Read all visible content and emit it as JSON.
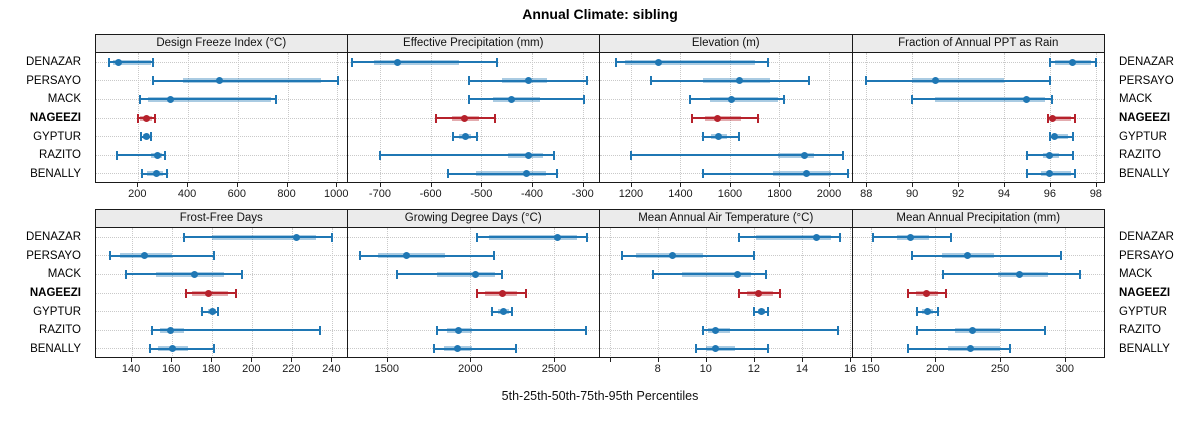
{
  "colors": {
    "blue": "#1f77b4",
    "blue_band": "rgba(31,119,180,0.38)",
    "red": "#b6212b",
    "red_band": "rgba(182,33,43,0.38)",
    "grid": "#c9c9c9",
    "strip_bg": "#ebebeb",
    "border": "#1a1a1a",
    "tick_text": "#1a1a1a"
  },
  "chart_data": {
    "type": "dotplot-interval",
    "title": "Annual Climate: sibling",
    "xlabel": "5th-25th-50th-75th-95th Percentiles",
    "percentile_levels": [
      5,
      25,
      50,
      75,
      95
    ],
    "sites": [
      "DENAZAR",
      "PERSAYO",
      "MACK",
      "NAGEEZI",
      "GYPTUR",
      "RAZITO",
      "BENALLY"
    ],
    "highlight_site": "NAGEEZI",
    "legend_position": "none",
    "grid": "dotted",
    "panels": [
      {
        "title": "Design Freeze Index (°C)",
        "xlim": [
          30,
          1045
        ],
        "ticks": [
          200,
          400,
          600,
          800,
          1000
        ],
        "tick_labels": [
          "200",
          "400",
          "600",
          "800",
          "1000"
        ],
        "values": {
          "DENAZAR": [
            82,
            98,
            122,
            250,
            259
          ],
          "PERSAYO": [
            259,
            380,
            528,
            935,
            1002
          ],
          "MACK": [
            205,
            238,
            330,
            735,
            753
          ],
          "NAGEEZI": [
            200,
            208,
            232,
            255,
            266
          ],
          "GYPTUR": [
            210,
            220,
            231,
            242,
            252
          ],
          "RAZITO": [
            114,
            250,
            278,
            296,
            306
          ],
          "BENALLY": [
            215,
            235,
            272,
            300,
            316
          ]
        }
      },
      {
        "title": "Effective Precipitation (mm)",
        "xlim": [
          -764,
          -266
        ],
        "ticks": [
          -700,
          -600,
          -500,
          -400,
          -300
        ],
        "tick_labels": [
          "-700",
          "-600",
          "-500",
          "-400",
          "-300"
        ],
        "values": {
          "DENAZAR": [
            -755,
            -712,
            -665,
            -545,
            -470
          ],
          "PERSAYO": [
            -525,
            -460,
            -408,
            -370,
            -291
          ],
          "MACK": [
            -525,
            -478,
            -440,
            -385,
            -297
          ],
          "NAGEEZI": [
            -590,
            -558,
            -533,
            -505,
            -473
          ],
          "GYPTUR": [
            -556,
            -545,
            -532,
            -520,
            -508
          ],
          "RAZITO": [
            -700,
            -448,
            -408,
            -378,
            -357
          ],
          "BENALLY": [
            -565,
            -510,
            -410,
            -373,
            -350
          ]
        }
      },
      {
        "title": "Elevation (m)",
        "xlim": [
          1075,
          2095
        ],
        "ticks": [
          1200,
          1400,
          1600,
          1800,
          2000
        ],
        "tick_labels": [
          "1200",
          "1400",
          "1600",
          "1800",
          "2000"
        ],
        "values": {
          "DENAZAR": [
            1140,
            1175,
            1310,
            1700,
            1755
          ],
          "PERSAYO": [
            1280,
            1490,
            1640,
            1760,
            1920
          ],
          "MACK": [
            1440,
            1520,
            1605,
            1795,
            1820
          ],
          "NAGEEZI": [
            1445,
            1500,
            1548,
            1645,
            1715
          ],
          "GYPTUR": [
            1492,
            1525,
            1555,
            1590,
            1635
          ],
          "RAZITO": [
            1200,
            1795,
            1900,
            1940,
            2058
          ],
          "BENALLY": [
            1490,
            1775,
            1908,
            2010,
            2078
          ]
        }
      },
      {
        "title": "Fraction of Annual PPT as Rain",
        "xlim": [
          87.4,
          98.4
        ],
        "ticks": [
          88,
          90,
          92,
          94,
          96,
          98
        ],
        "tick_labels": [
          "88",
          "90",
          "92",
          "94",
          "96",
          "98"
        ],
        "values": {
          "DENAZAR": [
            96,
            96.2,
            97,
            97.8,
            98
          ],
          "PERSAYO": [
            88,
            90,
            91,
            94,
            96
          ],
          "MACK": [
            90,
            91,
            95,
            95.8,
            96.1
          ],
          "NAGEEZI": [
            95.9,
            96,
            96.1,
            96.9,
            97.1
          ],
          "GYPTUR": [
            96,
            96.1,
            96.2,
            96.8,
            97
          ],
          "RAZITO": [
            95,
            95.7,
            96,
            96.4,
            97
          ],
          "BENALLY": [
            95,
            95.6,
            96,
            96.9,
            97.1
          ]
        }
      },
      {
        "title": "Frost-Free Days",
        "xlim": [
          122,
          248
        ],
        "ticks": [
          140,
          160,
          180,
          200,
          220,
          240
        ],
        "tick_labels": [
          "140",
          "160",
          "180",
          "200",
          "220",
          "240"
        ],
        "values": {
          "DENAZAR": [
            166,
            180,
            222,
            232,
            240
          ],
          "PERSAYO": [
            129,
            134,
            146,
            160,
            181
          ],
          "MACK": [
            137,
            152,
            171,
            186,
            195
          ],
          "NAGEEZI": [
            167,
            170,
            178,
            188,
            192
          ],
          "GYPTUR": [
            175,
            178,
            180,
            182,
            183
          ],
          "RAZITO": [
            150,
            154,
            159,
            166,
            234
          ],
          "BENALLY": [
            149,
            153,
            160,
            168,
            181
          ]
        }
      },
      {
        "title": "Growing Degree Days (°C)",
        "xlim": [
          1265,
          2775
        ],
        "ticks": [
          1500,
          2000,
          2500
        ],
        "tick_labels": [
          "1500",
          "2000",
          "2500"
        ],
        "values": {
          "DENAZAR": [
            2040,
            2110,
            2520,
            2640,
            2700
          ],
          "PERSAYO": [
            1340,
            1450,
            1620,
            1850,
            2140
          ],
          "MACK": [
            1560,
            1800,
            2030,
            2150,
            2190
          ],
          "NAGEEZI": [
            2040,
            2090,
            2190,
            2280,
            2330
          ],
          "GYPTUR": [
            2130,
            2165,
            2195,
            2230,
            2250
          ],
          "RAZITO": [
            1800,
            1860,
            1930,
            2010,
            2690
          ],
          "BENALLY": [
            1780,
            1840,
            1920,
            2010,
            2270
          ]
        }
      },
      {
        "title": "Mean Annual Air Temperature (°C)",
        "xlim": [
          5.6,
          16.1
        ],
        "ticks": [
          6,
          8,
          10,
          12,
          14,
          16
        ],
        "tick_labels": [
          "",
          "8",
          "10",
          "12",
          "14",
          "16"
        ],
        "values": {
          "DENAZAR": [
            11.4,
            12.1,
            14.6,
            15.2,
            15.6
          ],
          "PERSAYO": [
            6.5,
            7.1,
            8.6,
            9.9,
            12.0
          ],
          "MACK": [
            7.8,
            9.0,
            11.3,
            11.9,
            12.5
          ],
          "NAGEEZI": [
            11.4,
            11.7,
            12.2,
            12.8,
            13.1
          ],
          "GYPTUR": [
            12.0,
            12.15,
            12.3,
            12.45,
            12.6
          ],
          "RAZITO": [
            9.9,
            10.1,
            10.4,
            11.0,
            15.5
          ],
          "BENALLY": [
            9.6,
            10.0,
            10.4,
            11.2,
            12.6
          ]
        }
      },
      {
        "title": "Mean Annual Precipitation (mm)",
        "xlim": [
          136,
          331
        ],
        "ticks": [
          150,
          200,
          250,
          300
        ],
        "tick_labels": [
          "150",
          "200",
          "250",
          "300"
        ],
        "values": {
          "DENAZAR": [
            152,
            170,
            181,
            195,
            212
          ],
          "PERSAYO": [
            182,
            205,
            225,
            245,
            297
          ],
          "MACK": [
            206,
            248,
            265,
            287,
            312
          ],
          "NAGEEZI": [
            179,
            185,
            193,
            202,
            208
          ],
          "GYPTUR": [
            186,
            190,
            194,
            198,
            202
          ],
          "RAZITO": [
            186,
            215,
            229,
            250,
            285
          ],
          "BENALLY": [
            179,
            210,
            227,
            250,
            258
          ]
        }
      }
    ]
  }
}
